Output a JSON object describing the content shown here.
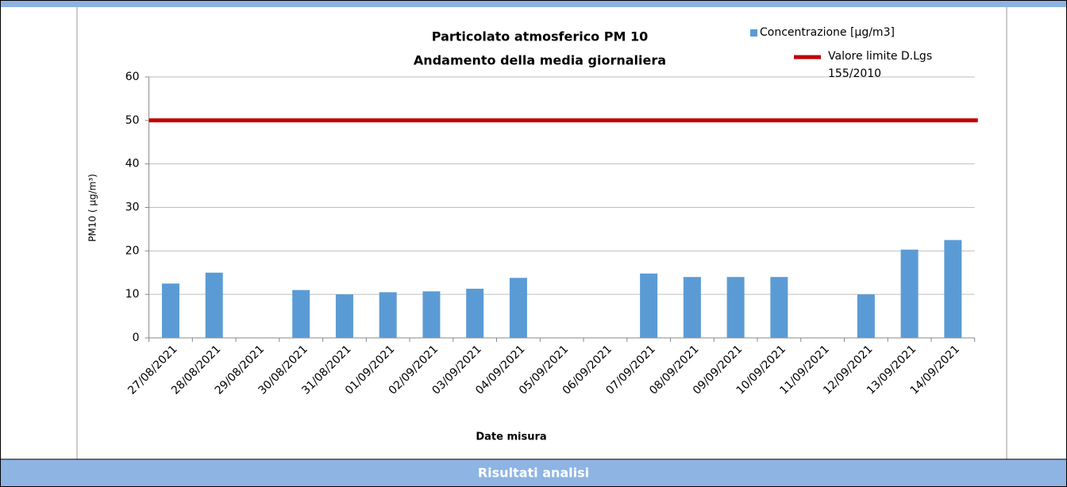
{
  "chart_data": {
    "type": "bar",
    "title": "Particolato atmosferico PM 10",
    "subtitle": "Andamento della media giornaliera",
    "y_label": "PM10 ( µg/m³)",
    "x_label": "Date misura",
    "categories": [
      "27/08/2021",
      "28/08/2021",
      "29/08/2021",
      "30/08/2021",
      "31/08/2021",
      "01/09/2021",
      "02/09/2021",
      "03/09/2021",
      "04/09/2021",
      "05/09/2021",
      "06/09/2021",
      "07/09/2021",
      "08/09/2021",
      "09/09/2021",
      "10/09/2021",
      "11/09/2021",
      "12/09/2021",
      "13/09/2021",
      "14/09/2021"
    ],
    "series": [
      {
        "name": "Concentrazione [µg/m3]",
        "color": "#5b9bd5",
        "values": [
          12.5,
          15,
          null,
          11,
          10,
          10.5,
          10.7,
          11.3,
          13.8,
          null,
          null,
          14.8,
          14,
          14,
          14,
          null,
          10,
          20.3,
          22.5
        ]
      },
      {
        "name": "Valore limite D.Lgs 155/2010",
        "color": "#c00000",
        "values": [
          50,
          50,
          50,
          50,
          50,
          50,
          50,
          50,
          50,
          50,
          50,
          50,
          50,
          50,
          50,
          50,
          50,
          50,
          50
        ]
      }
    ],
    "ylim": [
      0,
      60
    ],
    "yticks": [
      0,
      10,
      20,
      30,
      40,
      50,
      60
    ],
    "grid": true
  },
  "footer": {
    "title": "Risultati analisi"
  }
}
